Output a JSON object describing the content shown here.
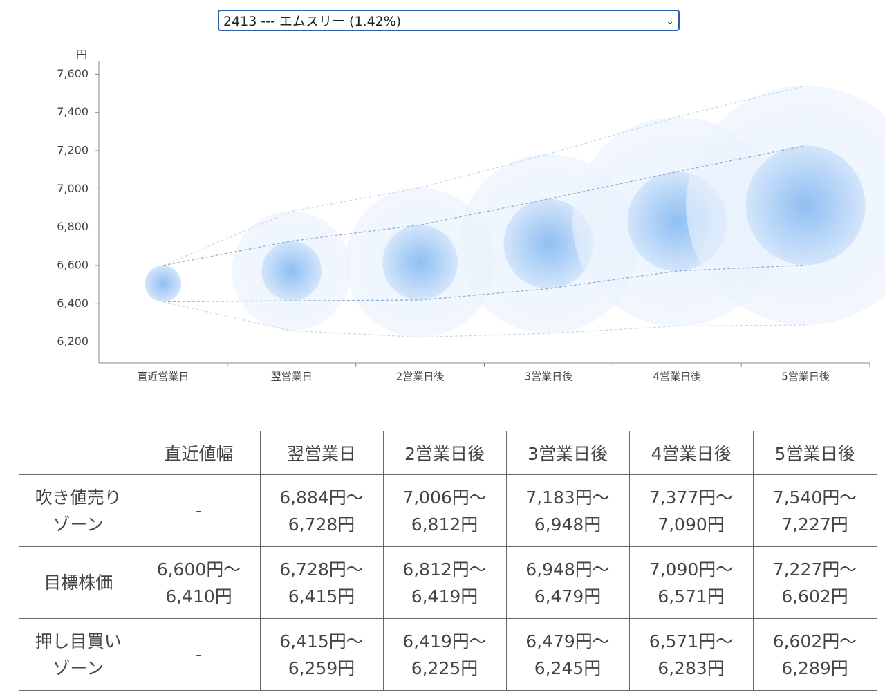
{
  "selector": {
    "selected": "2413 --- エムスリー (1.42%)"
  },
  "chart_data": {
    "type": "bubble-range",
    "y_axis_label": "円",
    "categories": [
      "直近営業日",
      "翌営業日",
      "2営業日後",
      "3営業日後",
      "4営業日後",
      "5営業日後"
    ],
    "series": [
      {
        "color": "#c9d9ea",
        "values": [
          6600,
          6884,
          7006,
          7183,
          7377,
          7540
        ]
      },
      {
        "color": "#8fb0d6",
        "values": [
          6600,
          6728,
          6812,
          6948,
          7090,
          7227
        ]
      },
      {
        "color": "#8fb0d6",
        "values": [
          6410,
          6415,
          6419,
          6479,
          6571,
          6602
        ]
      },
      {
        "color": "#c9d9ea",
        "values": [
          6410,
          6259,
          6225,
          6245,
          6283,
          6289
        ]
      }
    ],
    "ylim": [
      6090,
      7670
    ],
    "yticks": [
      {
        "value": 6200,
        "label": "6,200"
      },
      {
        "value": 6400,
        "label": "6,400"
      },
      {
        "value": 6600,
        "label": "6,600"
      },
      {
        "value": 6800,
        "label": "6,800"
      },
      {
        "value": 7000,
        "label": "7,000"
      },
      {
        "value": 7200,
        "label": "7,200"
      },
      {
        "value": 7400,
        "label": "7,400"
      },
      {
        "value": 7600,
        "label": "7,600"
      }
    ]
  },
  "table": {
    "header": [
      "直近値幅",
      "翌営業日",
      "2営業日後",
      "3営業日後",
      "4営業日後",
      "5営業日後"
    ],
    "rows": [
      {
        "label": [
          "吹き値売り",
          "ゾーン"
        ],
        "cells": [
          [
            "-"
          ],
          [
            "6,884円〜",
            "6,728円"
          ],
          [
            "7,006円〜",
            "6,812円"
          ],
          [
            "7,183円〜",
            "6,948円"
          ],
          [
            "7,377円〜",
            "7,090円"
          ],
          [
            "7,540円〜",
            "7,227円"
          ]
        ]
      },
      {
        "label": [
          "目標株価"
        ],
        "cells": [
          [
            "6,600円〜",
            "6,410円"
          ],
          [
            "6,728円〜",
            "6,415円"
          ],
          [
            "6,812円〜",
            "6,419円"
          ],
          [
            "6,948円〜",
            "6,479円"
          ],
          [
            "7,090円〜",
            "6,571円"
          ],
          [
            "7,227円〜",
            "6,602円"
          ]
        ]
      },
      {
        "label": [
          "押し目買い",
          "ゾーン"
        ],
        "cells": [
          [
            "-"
          ],
          [
            "6,415円〜",
            "6,259円"
          ],
          [
            "6,419円〜",
            "6,225円"
          ],
          [
            "6,479円〜",
            "6,245円"
          ],
          [
            "6,571円〜",
            "6,283円"
          ],
          [
            "6,602円〜",
            "6,289円"
          ]
        ]
      }
    ]
  }
}
